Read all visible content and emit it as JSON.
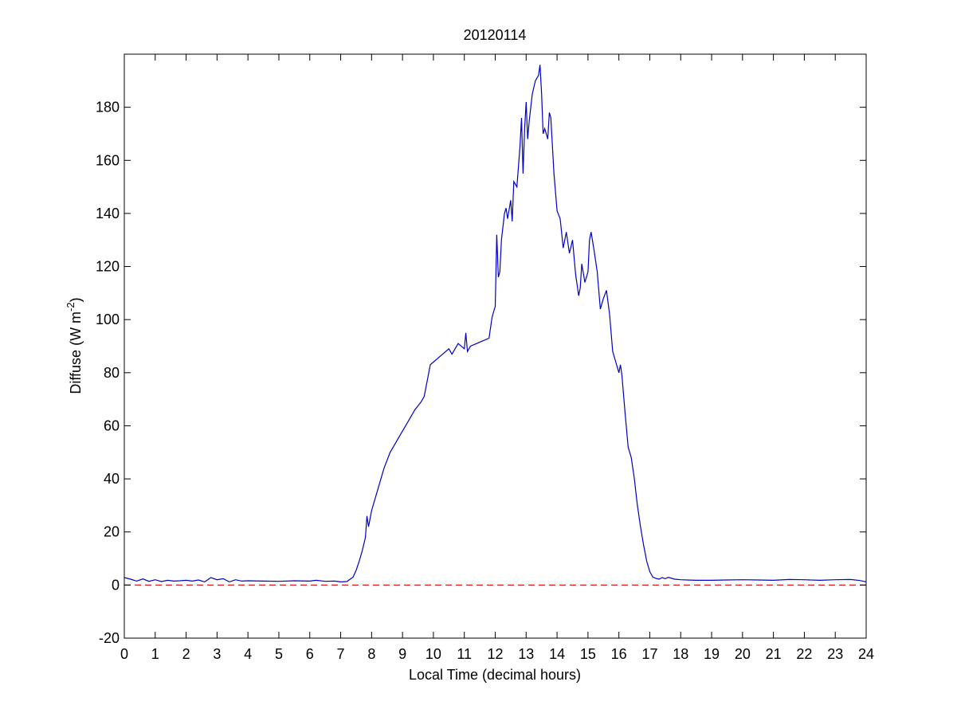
{
  "chart_data": {
    "type": "line",
    "title": "20120114",
    "xlabel": "Local Time (decimal hours)",
    "ylabel": {
      "prefix": "Diffuse (W m",
      "superscript": "-2",
      "suffix": ")"
    },
    "xlim": [
      0,
      24
    ],
    "ylim": [
      -20,
      200
    ],
    "x_ticks": [
      0,
      1,
      2,
      3,
      4,
      5,
      6,
      7,
      8,
      9,
      10,
      11,
      12,
      13,
      14,
      15,
      16,
      17,
      18,
      19,
      20,
      21,
      22,
      23,
      24
    ],
    "y_ticks": [
      -20,
      0,
      20,
      40,
      60,
      80,
      100,
      120,
      140,
      160,
      180
    ],
    "grid": false,
    "series": [
      {
        "color": "#0000c8",
        "style": "solid",
        "x": [
          0,
          0.2,
          0.4,
          0.6,
          0.8,
          1,
          1.2,
          1.4,
          1.6,
          1.8,
          2,
          2.2,
          2.4,
          2.6,
          2.7,
          2.8,
          3,
          3.2,
          3.4,
          3.6,
          3.8,
          4,
          4.5,
          5,
          5.5,
          6,
          6.2,
          6.5,
          6.8,
          7,
          7.2,
          7.4,
          7.5,
          7.6,
          7.7,
          7.8,
          7.85,
          7.9,
          8,
          8.2,
          8.4,
          8.6,
          8.8,
          9,
          9.2,
          9.4,
          9.6,
          9.7,
          9.8,
          9.9,
          10,
          10.2,
          10.4,
          10.5,
          10.6,
          10.8,
          11,
          11.05,
          11.1,
          11.2,
          11.4,
          11.6,
          11.8,
          11.9,
          12,
          12.05,
          12.1,
          12.15,
          12.2,
          12.3,
          12.35,
          12.4,
          12.5,
          12.55,
          12.6,
          12.7,
          12.8,
          12.85,
          12.9,
          12.95,
          13,
          13.05,
          13.1,
          13.2,
          13.3,
          13.4,
          13.45,
          13.5,
          13.55,
          13.6,
          13.7,
          13.75,
          13.8,
          13.9,
          14,
          14.1,
          14.2,
          14.3,
          14.4,
          14.5,
          14.6,
          14.7,
          14.75,
          14.8,
          14.9,
          15,
          15.05,
          15.1,
          15.2,
          15.3,
          15.4,
          15.5,
          15.6,
          15.7,
          15.8,
          15.9,
          16,
          16.05,
          16.1,
          16.2,
          16.3,
          16.4,
          16.5,
          16.6,
          16.7,
          16.8,
          16.9,
          17,
          17.1,
          17.2,
          17.3,
          17.4,
          17.5,
          17.6,
          17.8,
          18,
          18.2,
          18.5,
          19,
          19.5,
          20,
          20.5,
          21,
          21.5,
          22,
          22.5,
          23,
          23.5,
          23.8,
          24
        ],
        "values": [
          2.8,
          2.2,
          1.5,
          2.3,
          1.4,
          2.0,
          1.3,
          1.8,
          1.5,
          1.6,
          1.8,
          1.5,
          1.9,
          1.2,
          2.0,
          2.8,
          2.0,
          2.4,
          1.2,
          2.0,
          1.5,
          1.6,
          1.5,
          1.4,
          1.6,
          1.5,
          1.8,
          1.4,
          1.5,
          1.2,
          1.3,
          3.0,
          5.5,
          9.0,
          13.0,
          18.0,
          26.0,
          22.0,
          28.0,
          36.0,
          44.0,
          50.0,
          54.0,
          58.0,
          62.0,
          66.0,
          69.0,
          71.0,
          77.0,
          83.0,
          84.0,
          86.0,
          88.0,
          89.0,
          87.0,
          91.0,
          89.0,
          95.0,
          88.0,
          90.0,
          91.0,
          92.0,
          93.0,
          101.0,
          105.0,
          132.0,
          116.0,
          118.0,
          130.0,
          140.0,
          142.0,
          138.0,
          145.0,
          137.0,
          152.0,
          150.0,
          165.0,
          176.0,
          155.0,
          172.0,
          182.0,
          168.0,
          175.0,
          185.0,
          190.0,
          192.0,
          196.0,
          185.0,
          170.0,
          172.0,
          168.0,
          178.0,
          176.0,
          155.0,
          141.0,
          138.0,
          127.0,
          133.0,
          125.0,
          130.0,
          117.0,
          109.0,
          112.0,
          121.0,
          114.0,
          118.0,
          130.0,
          133.0,
          126.0,
          118.0,
          104.0,
          108.0,
          111.0,
          102.0,
          88.0,
          84.0,
          80.0,
          83.0,
          79.0,
          65.0,
          52.0,
          48.0,
          40.0,
          30.0,
          22.0,
          15.0,
          9.0,
          5.0,
          3.0,
          2.5,
          2.2,
          2.8,
          2.4,
          2.9,
          2.2,
          2.0,
          1.9,
          1.8,
          1.8,
          1.9,
          2.0,
          1.9,
          1.8,
          2.1,
          2.0,
          1.8,
          2.0,
          2.1,
          1.7,
          1.2
        ]
      },
      {
        "color": "#d42020",
        "style": "dashed",
        "x": [
          0,
          24
        ],
        "values": [
          0,
          0
        ]
      }
    ]
  }
}
